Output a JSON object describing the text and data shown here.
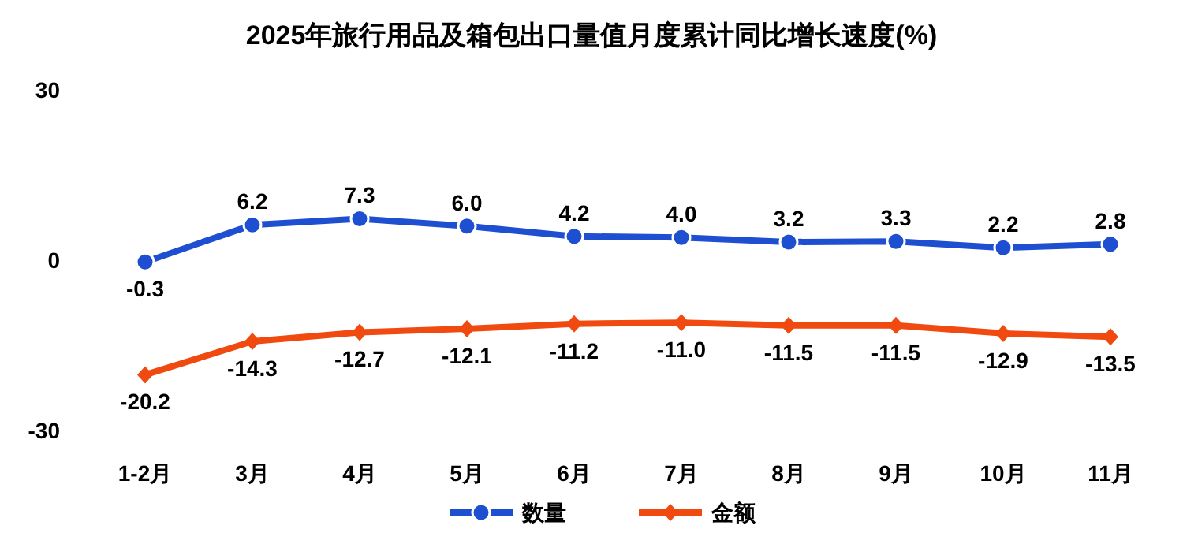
{
  "chart_data": {
    "type": "line",
    "title": "2025年旅行用品及箱包出口量值月度累计同比增长速度(%)",
    "categories": [
      "1-2月",
      "3月",
      "4月",
      "5月",
      "6月",
      "7月",
      "8月",
      "9月",
      "10月",
      "11月"
    ],
    "series": [
      {
        "name": "数量",
        "color": "#1f4fd1",
        "marker": "circle",
        "values": [
          -0.3,
          6.2,
          7.3,
          6.0,
          4.2,
          4.0,
          3.2,
          3.3,
          2.2,
          2.8
        ],
        "value_labels": [
          "-0.3",
          "6.2",
          "7.3",
          "6.0",
          "4.2",
          "4.0",
          "3.2",
          "3.3",
          "2.2",
          "2.8"
        ]
      },
      {
        "name": "金额",
        "color": "#f04a10",
        "marker": "diamond",
        "values": [
          -20.2,
          -14.3,
          -12.7,
          -12.1,
          -11.2,
          -11.0,
          -11.5,
          -11.5,
          -12.9,
          -13.5
        ],
        "value_labels": [
          "-20.2",
          "-14.3",
          "-12.7",
          "-12.1",
          "-11.2",
          "-11.0",
          "-11.5",
          "-11.5",
          "-12.9",
          "-13.5"
        ]
      }
    ],
    "ylim": [
      -30,
      30
    ],
    "yticks": [
      30,
      0,
      -30
    ],
    "grid": false,
    "legend": "bottom",
    "line_style": "solid"
  }
}
